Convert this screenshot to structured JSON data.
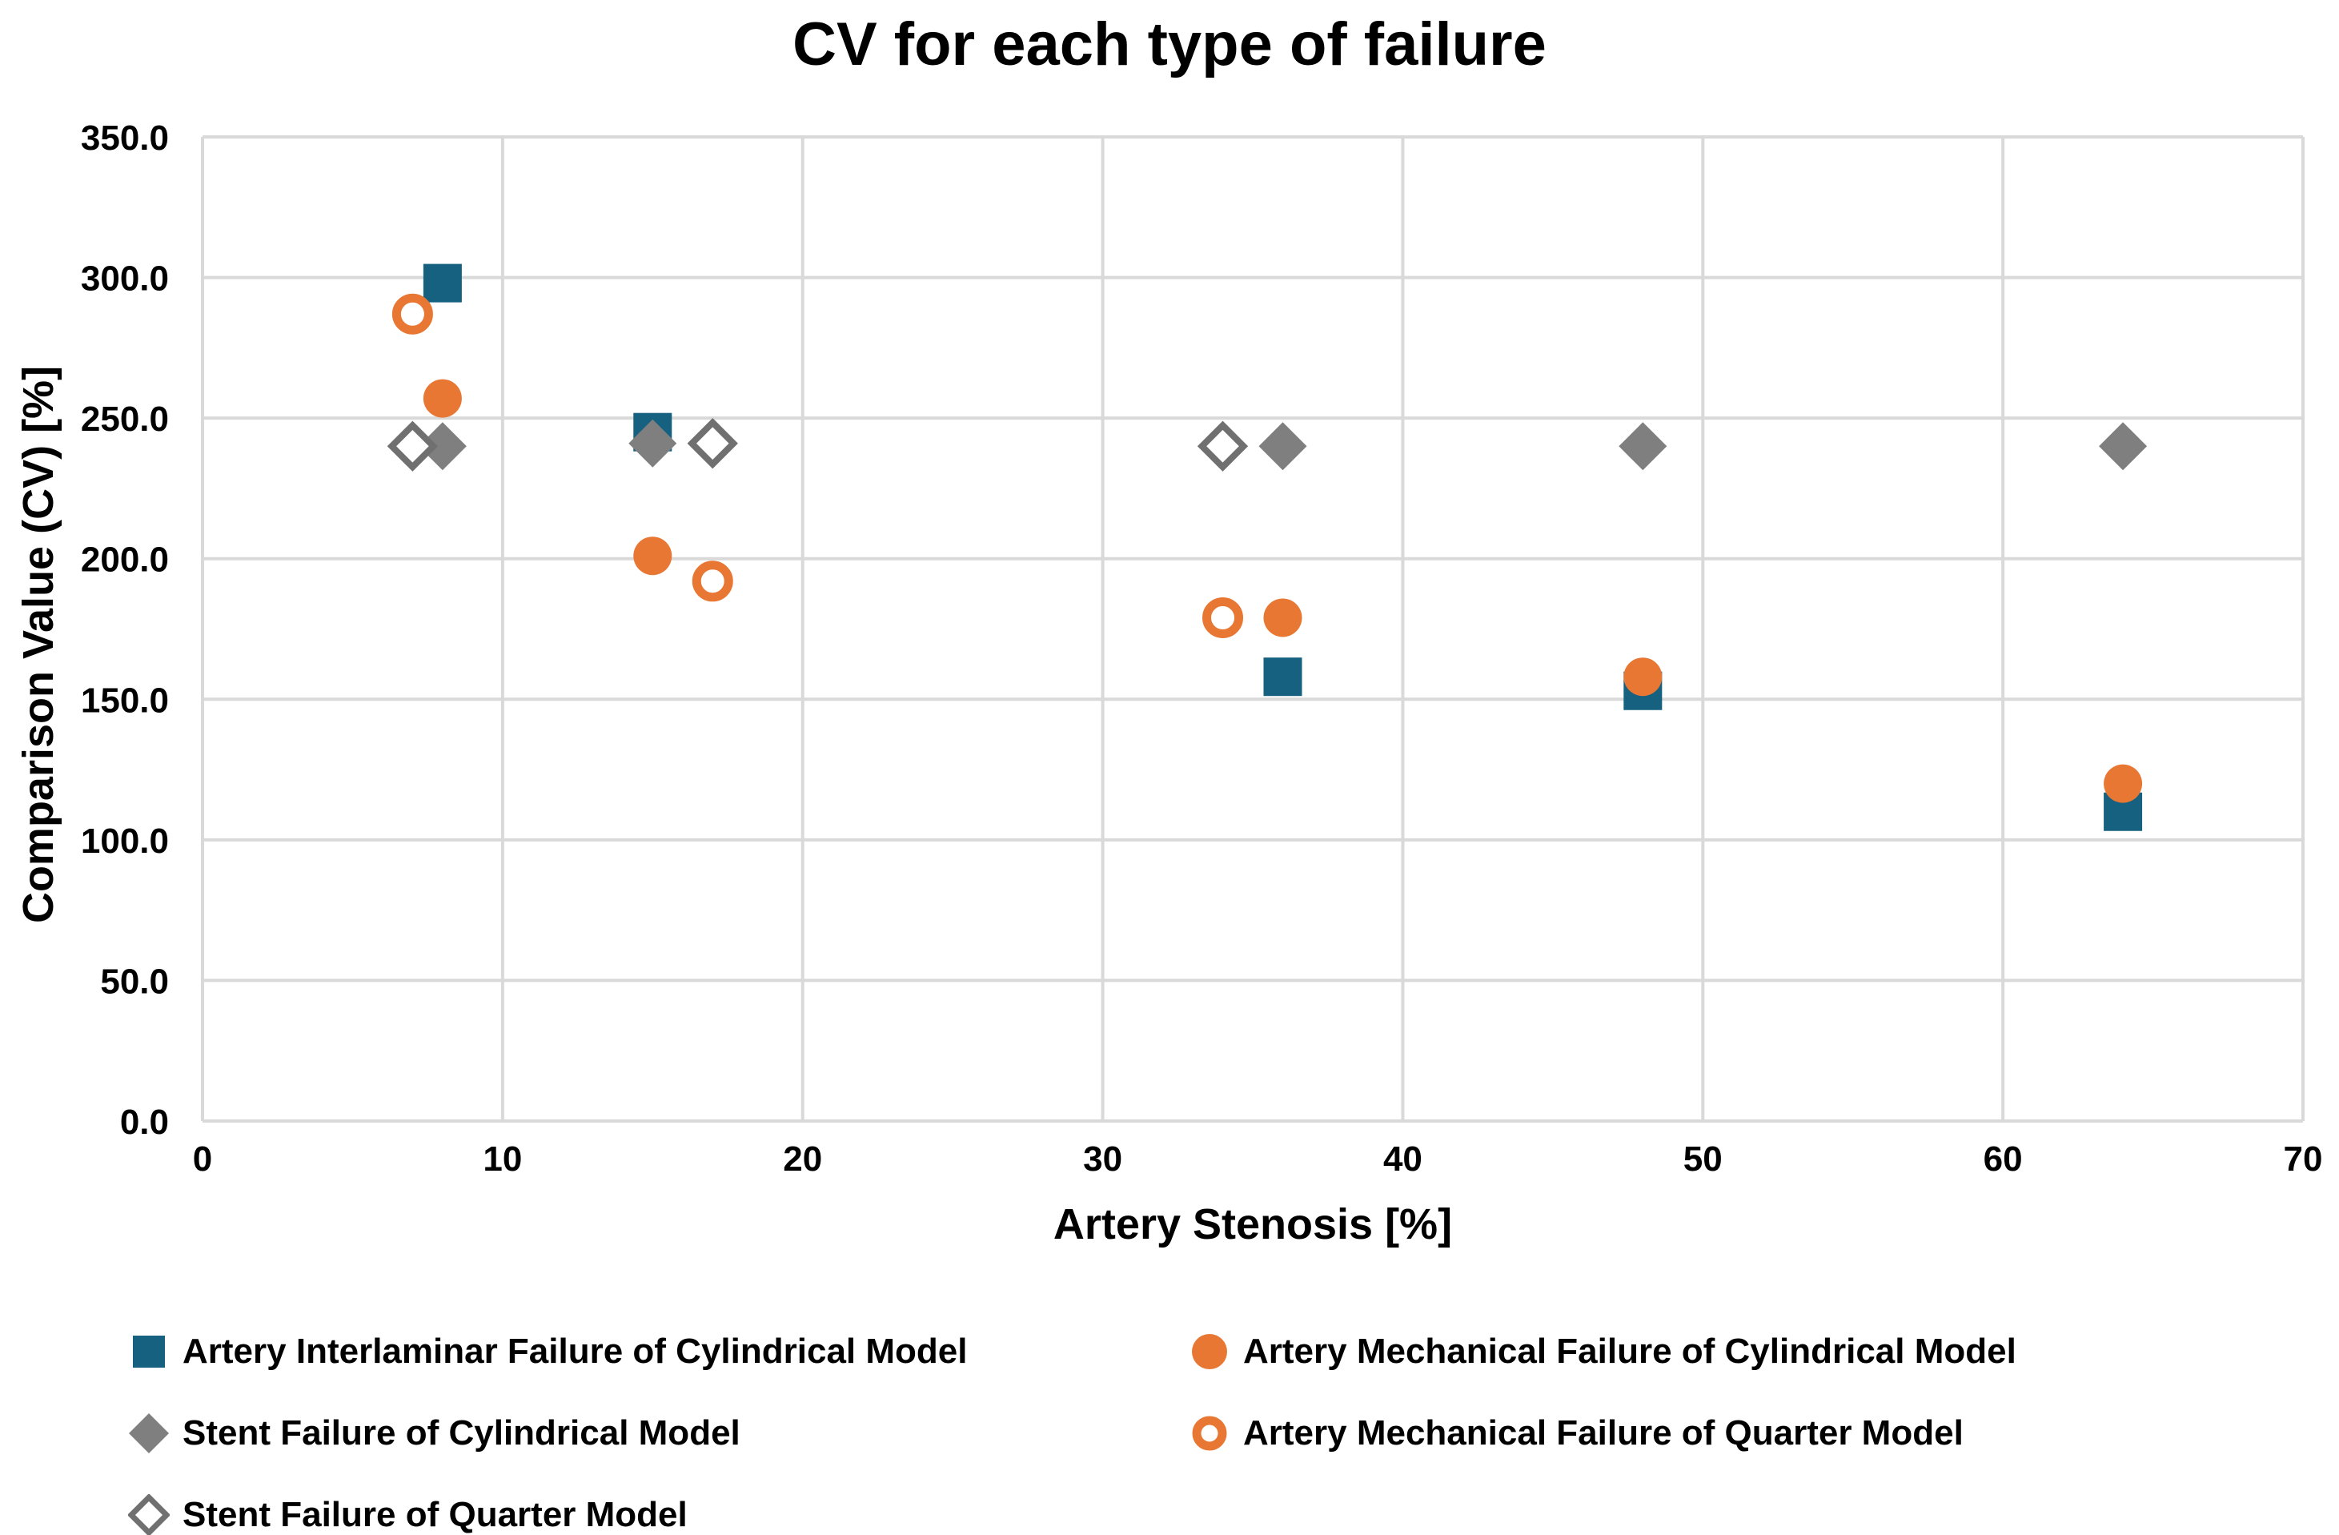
{
  "page": {
    "background": "#FFFFFF"
  },
  "chart_data": {
    "type": "scatter",
    "title": "CV for each type of failure",
    "xlabel": "Artery Stenosis [%]",
    "ylabel": "Comparison Value (CV) [%]",
    "xlim": [
      0,
      70
    ],
    "ylim": [
      0,
      350
    ],
    "xticks": [
      0,
      10,
      20,
      30,
      40,
      50,
      60,
      70
    ],
    "ytick_step": 50,
    "ytick_labels": [
      "0.0",
      "50.0",
      "100.0",
      "150.0",
      "200.0",
      "250.0",
      "300.0",
      "350.0"
    ],
    "grid": true,
    "gridline_color": "#D9D9D9",
    "text_color": "#000000",
    "legend_position": "bottom",
    "series": [
      {
        "name": "Artery Interlaminar Failure of Cylindrical Model",
        "marker": "square-filled",
        "color": "#16617F",
        "points": [
          [
            8,
            298
          ],
          [
            15,
            245
          ],
          [
            36,
            158
          ],
          [
            48,
            153
          ],
          [
            64,
            110
          ]
        ]
      },
      {
        "name": "Artery Mechanical Failure of Cylindrical Model",
        "marker": "circle-filled",
        "color": "#E87734",
        "points": [
          [
            8,
            257
          ],
          [
            15,
            201
          ],
          [
            36,
            179
          ],
          [
            48,
            158
          ],
          [
            64,
            120
          ]
        ]
      },
      {
        "name": "Stent Failure of Cylindrical Model",
        "marker": "diamond-filled",
        "color": "#7F7F7F",
        "points": [
          [
            8,
            240
          ],
          [
            15,
            241
          ],
          [
            36,
            240
          ],
          [
            48,
            240
          ],
          [
            64,
            240
          ]
        ]
      },
      {
        "name": "Artery Mechanical Failure of Quarter Model",
        "marker": "circle-open",
        "color": "#E87734",
        "points": [
          [
            7,
            287
          ],
          [
            17,
            192
          ],
          [
            34,
            179
          ]
        ]
      },
      {
        "name": "Stent Failure of Quarter Model",
        "marker": "diamond-open",
        "color": "#707070",
        "points": [
          [
            7,
            240
          ],
          [
            17,
            241
          ],
          [
            34,
            240
          ]
        ]
      }
    ]
  }
}
